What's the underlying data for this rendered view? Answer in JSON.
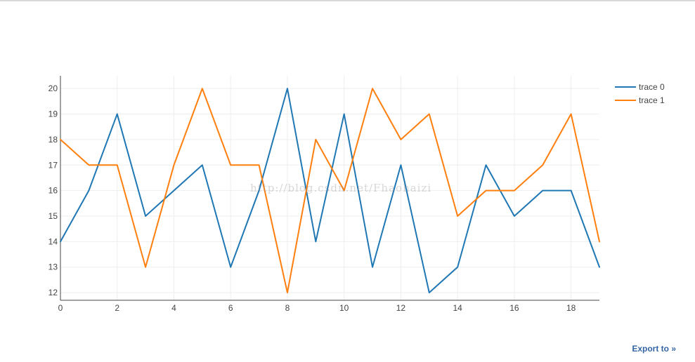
{
  "chart_data": {
    "type": "line",
    "x": [
      0,
      1,
      2,
      3,
      4,
      5,
      6,
      7,
      8,
      9,
      10,
      11,
      12,
      13,
      14,
      15,
      16,
      17,
      18,
      19
    ],
    "series": [
      {
        "name": "trace 0",
        "color": "#1f77b4",
        "values": [
          14,
          16,
          19,
          15,
          16,
          17,
          13,
          16,
          20,
          14,
          19,
          13,
          17,
          12,
          13,
          17,
          15,
          16,
          16,
          13
        ]
      },
      {
        "name": "trace 1",
        "color": "#ff7f0e",
        "values": [
          18,
          17,
          17,
          13,
          17,
          20,
          17,
          17,
          12,
          18,
          16,
          20,
          18,
          19,
          15,
          16,
          16,
          17,
          19,
          14
        ]
      }
    ],
    "xlim": [
      0,
      19
    ],
    "ylim": [
      11.7,
      20.5
    ],
    "xticks": [
      0,
      2,
      4,
      6,
      8,
      10,
      12,
      14,
      16,
      18
    ],
    "yticks": [
      12,
      13,
      14,
      15,
      16,
      17,
      18,
      19,
      20
    ],
    "title": "",
    "xlabel": "",
    "ylabel": "",
    "grid": true,
    "legend_position": "top-right"
  },
  "watermark": "http://blog.csdn.net/Fhaohaizi",
  "export_link": {
    "label": "Export to »",
    "color": "#3465a4"
  }
}
